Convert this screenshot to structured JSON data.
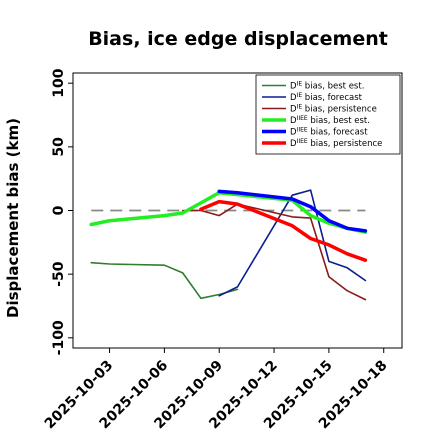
{
  "chart_data": {
    "type": "line",
    "title": "Bias, ice edge displacement",
    "xlabel": "",
    "ylabel": "Displacement bias (km)",
    "x_ticks": [
      "2025-10-03",
      "2025-10-06",
      "2025-10-09",
      "2025-10-12",
      "2025-10-15",
      "2025-10-18"
    ],
    "x_tick_colors": [
      "#000000",
      "#000000",
      "#228b22",
      "#000000",
      "#000000",
      "#000000"
    ],
    "y_ticks": [
      100,
      50,
      0,
      -50,
      -100
    ],
    "xlim": [
      "2025-10-01",
      "2025-10-19"
    ],
    "ylim": [
      -108,
      108
    ],
    "reference_line": 0,
    "legend_position": "upper-right",
    "series": [
      {
        "name": "D^IE bias, best est.",
        "label_main": "D",
        "label_sup": "IE",
        "label_rest": " bias, best est.",
        "color": "#2e7d32",
        "width": 1.6,
        "x": [
          "2025-10-02",
          "2025-10-03",
          "2025-10-06",
          "2025-10-07",
          "2025-10-08",
          "2025-10-09",
          "2025-10-10"
        ],
        "y": [
          -41,
          -42,
          -43,
          -49,
          -69,
          -66,
          -62
        ]
      },
      {
        "name": "D^IE bias, forecast",
        "label_main": "D",
        "label_sup": "IE",
        "label_rest": " bias, forecast",
        "color": "#0a1f8f",
        "width": 1.6,
        "x": [
          "2025-10-09",
          "2025-10-10",
          "2025-10-13",
          "2025-10-14",
          "2025-10-15",
          "2025-10-16",
          "2025-10-17"
        ],
        "y": [
          -67,
          -60,
          12,
          16,
          -40,
          -45,
          -55
        ]
      },
      {
        "name": "D^IE bias, persistence",
        "label_main": "D",
        "label_sup": "IE",
        "label_rest": " bias, persistence",
        "color": "#8b1a1a",
        "width": 1.6,
        "x": [
          "2025-10-07",
          "2025-10-08",
          "2025-10-09",
          "2025-10-10",
          "2025-10-13",
          "2025-10-14",
          "2025-10-15",
          "2025-10-16",
          "2025-10-17"
        ],
        "y": [
          0,
          0,
          -4,
          5,
          -5,
          -6,
          -52,
          -63,
          -70
        ]
      },
      {
        "name": "D^IIEE bias, best est.",
        "label_main": "D",
        "label_sup": "IIEE",
        "label_rest": " bias, best est.",
        "color": "#22ee22",
        "width": 3.5,
        "x": [
          "2025-10-02",
          "2025-10-03",
          "2025-10-06",
          "2025-10-07",
          "2025-10-08",
          "2025-10-09",
          "2025-10-13",
          "2025-10-14",
          "2025-10-15",
          "2025-10-16",
          "2025-10-17"
        ],
        "y": [
          -11,
          -8,
          -4,
          -2,
          6,
          14,
          8,
          -4,
          -10,
          -14,
          -17
        ]
      },
      {
        "name": "D^IIEE bias, forecast",
        "label_main": "D",
        "label_sup": "IIEE",
        "label_rest": " bias, forecast",
        "color": "#0000ff",
        "width": 3.5,
        "x": [
          "2025-10-09",
          "2025-10-10",
          "2025-10-13",
          "2025-10-14",
          "2025-10-15",
          "2025-10-16",
          "2025-10-17"
        ],
        "y": [
          15,
          14,
          9,
          3,
          -8,
          -14,
          -16
        ]
      },
      {
        "name": "D^IIEE bias, persistence",
        "label_main": "D",
        "label_sup": "IIEE",
        "label_rest": " bias, persistence",
        "color": "#ff0000",
        "width": 3.5,
        "x": [
          "2025-10-08",
          "2025-10-09",
          "2025-10-10",
          "2025-10-13",
          "2025-10-14",
          "2025-10-15",
          "2025-10-16",
          "2025-10-17"
        ],
        "y": [
          1,
          7,
          5,
          -12,
          -22,
          -27,
          -34,
          -39
        ]
      }
    ]
  }
}
